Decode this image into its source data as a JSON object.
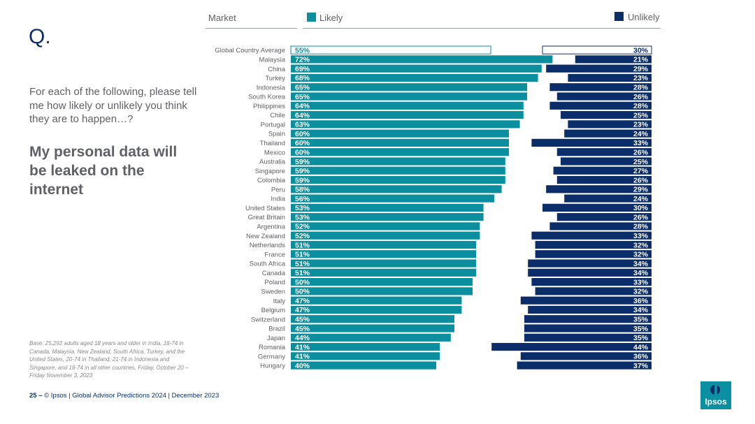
{
  "slide": {
    "q_mark": "Q.",
    "question": "For each of the following, please tell me how likely or unlikely you think they are to happen…?",
    "statement": "My personal data will be leaked on the internet",
    "base_note": "Base: 25,292 adults aged 18 years and older in India, 18-74 in Canada, Malaysia, New Zealand, South Africa, Turkey, and the United States, 20-74 in Thailand, 21-74 in Indonesia and Singapore, and 16-74 in all other countries. Friday, October 20 – Friday November 3, 2023",
    "page_number": "25 –",
    "footer_text": "© Ipsos | Global Advisor Predictions 2024 | December 2023",
    "logo_text": "Ipsos"
  },
  "header": {
    "market_label": "Market",
    "likely_label": "Likely",
    "unlikely_label": "Unlikely"
  },
  "colors": {
    "likely": "#0b8f9e",
    "unlikely": "#0b2e6b",
    "label_text": "#5f6167"
  },
  "chart_data": {
    "type": "bar",
    "orientation": "horizontal",
    "title": "My personal data will be leaked on the internet",
    "value_format": "percent",
    "xlim": [
      0,
      100
    ],
    "categories": [
      "Global Country Average",
      "Malaysia",
      "China",
      "Turkey",
      "Indonesia",
      "South Korea",
      "Philippines",
      "Chile",
      "Portugal",
      "Spain",
      "Thailand",
      "Mexico",
      "Australia",
      "Singapore",
      "Colombia",
      "Peru",
      "India",
      "United States",
      "Great Britain",
      "Argentina",
      "New Zealand",
      "Netherlands",
      "France",
      "South Africa",
      "Canada",
      "Poland",
      "Sweden",
      "Italy",
      "Belgium",
      "Switzerland",
      "Brazil",
      "Japan",
      "Romania",
      "Germany",
      "Hungary"
    ],
    "series": [
      {
        "name": "Likely",
        "values": [
          55,
          72,
          69,
          68,
          65,
          65,
          64,
          64,
          63,
          60,
          60,
          60,
          59,
          59,
          59,
          58,
          56,
          53,
          53,
          52,
          52,
          51,
          51,
          51,
          51,
          50,
          50,
          47,
          47,
          45,
          45,
          44,
          41,
          41,
          40
        ]
      },
      {
        "name": "Unlikely",
        "values": [
          30,
          21,
          29,
          23,
          28,
          26,
          28,
          25,
          23,
          24,
          33,
          26,
          25,
          27,
          26,
          29,
          24,
          30,
          26,
          28,
          33,
          32,
          32,
          34,
          34,
          33,
          32,
          36,
          34,
          35,
          35,
          35,
          44,
          36,
          37
        ]
      }
    ],
    "highlight_category": "Global Country Average"
  }
}
